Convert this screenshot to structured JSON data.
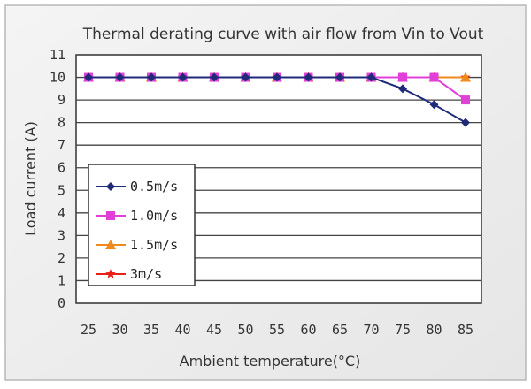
{
  "chart_data": {
    "type": "line",
    "title": "Thermal derating curve with air flow from Vin to Vout",
    "xlabel": "Ambient temperature(°C)",
    "ylabel": "Load current (A)",
    "categories": [
      "25",
      "30",
      "35",
      "40",
      "45",
      "50",
      "55",
      "60",
      "65",
      "70",
      "75",
      "80",
      "85"
    ],
    "ylim": [
      0,
      11
    ],
    "yticks": [
      "0",
      "1",
      "2",
      "3",
      "4",
      "5",
      "6",
      "7",
      "8",
      "9",
      "10",
      "11"
    ],
    "grid": true,
    "legend_position": "lower-left",
    "series": [
      {
        "name": "0.5m/s",
        "color": "#1f2a78",
        "marker": "diamond",
        "values": [
          10,
          10,
          10,
          10,
          10,
          10,
          10,
          10,
          10,
          10,
          9.5,
          8.8,
          8
        ]
      },
      {
        "name": "1.0m/s",
        "color": "#e040d8",
        "marker": "square",
        "values": [
          10,
          10,
          10,
          10,
          10,
          10,
          10,
          10,
          10,
          10,
          10,
          10,
          9
        ]
      },
      {
        "name": "1.5m/s",
        "color": "#f08a1a",
        "marker": "triangle",
        "values": [
          10,
          10,
          10,
          10,
          10,
          10,
          10,
          10,
          10,
          10,
          10,
          10,
          10
        ]
      },
      {
        "name": "3m/s",
        "color": "#e8201a",
        "marker": "star",
        "values": [
          10,
          10,
          10,
          10,
          10,
          10,
          10,
          10,
          10,
          10,
          10,
          10,
          10
        ]
      }
    ]
  }
}
